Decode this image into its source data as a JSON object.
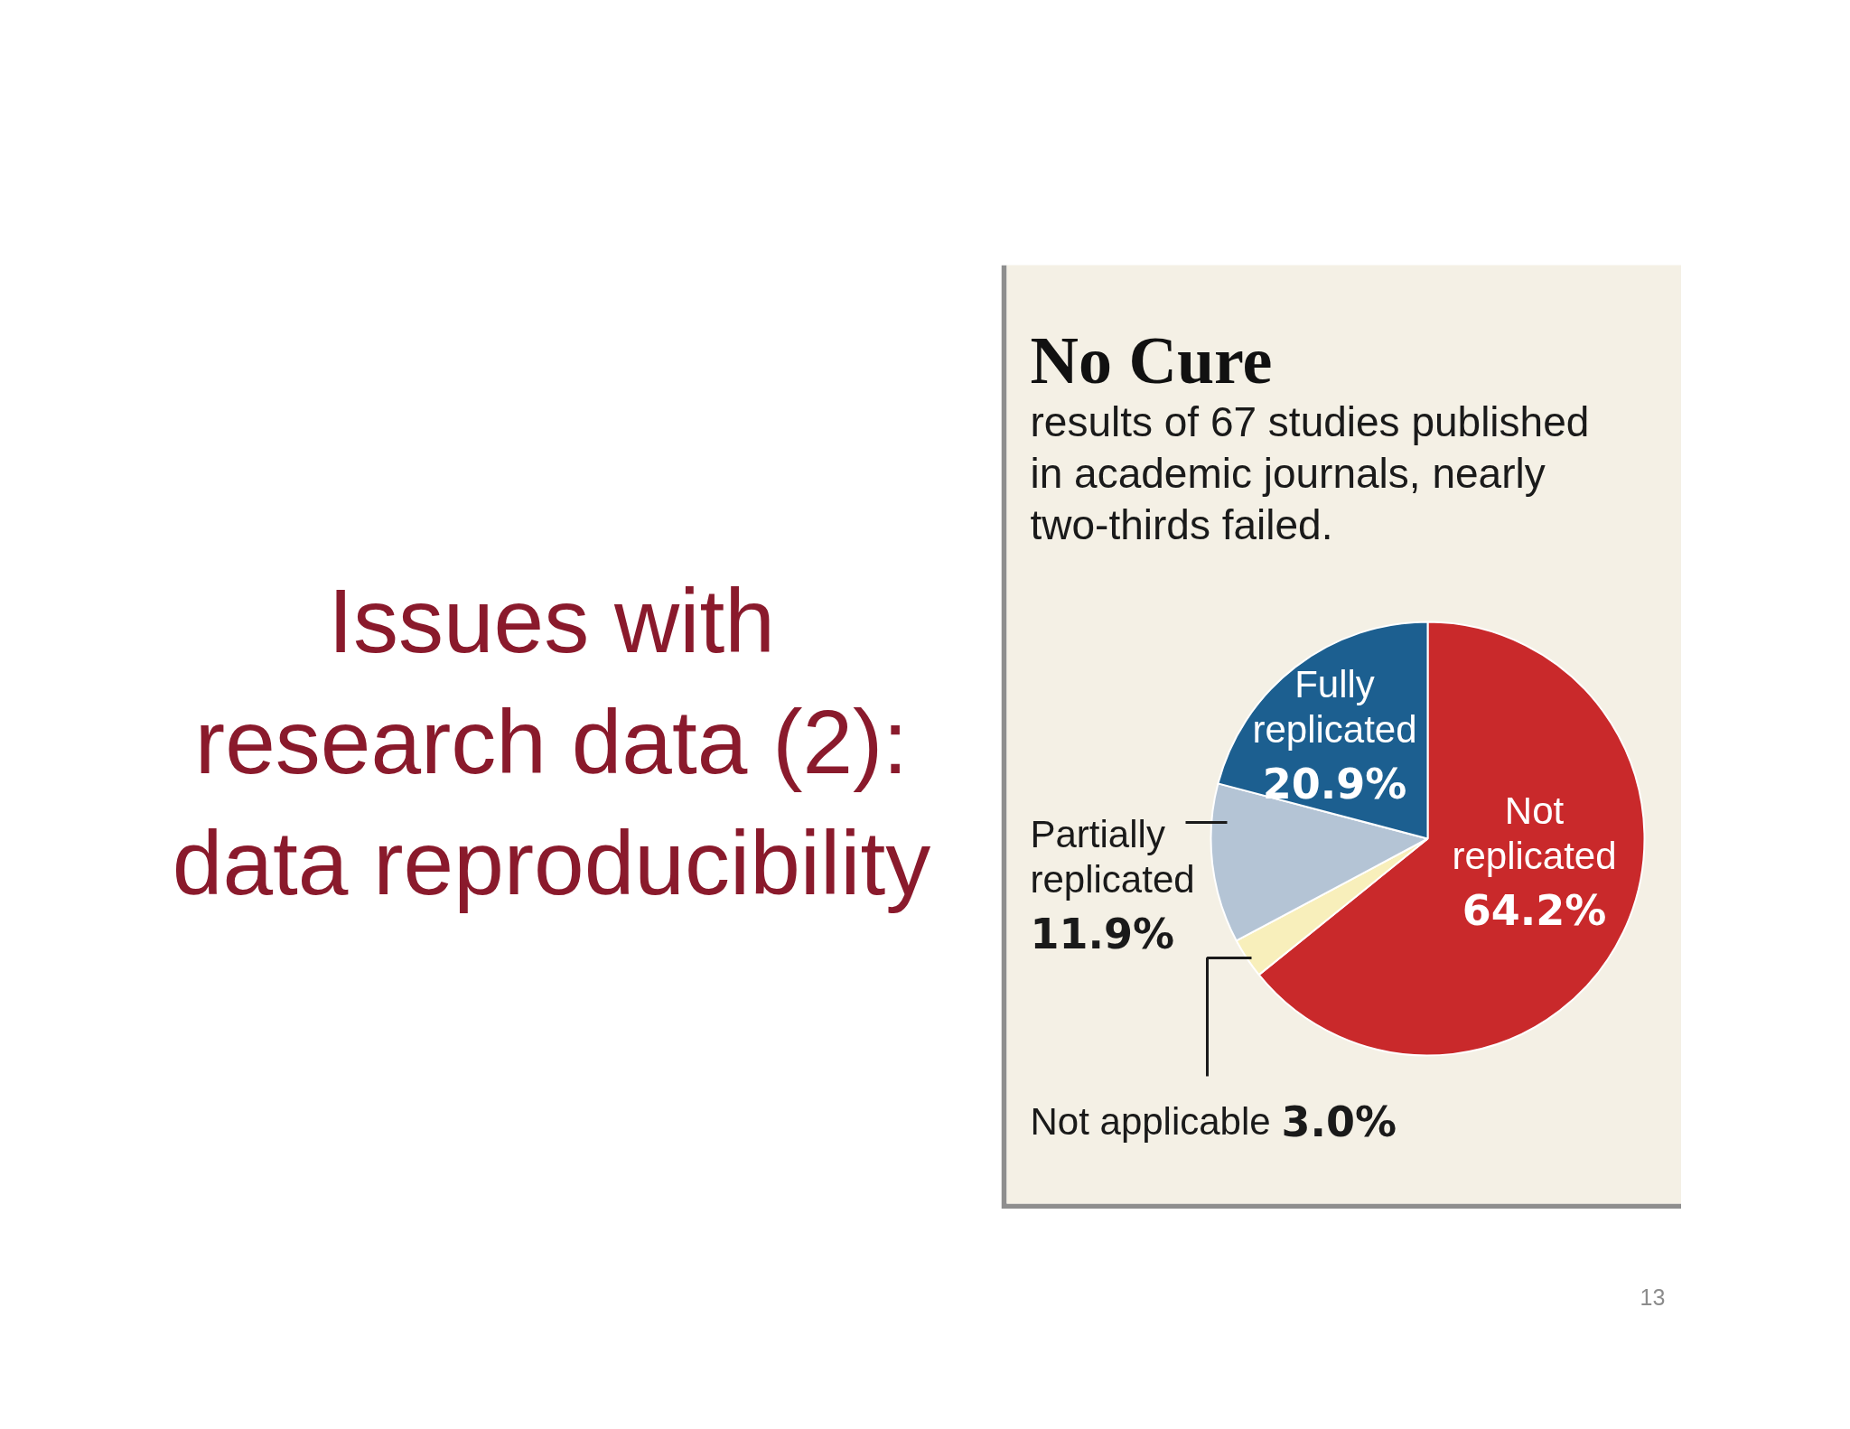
{
  "chart_data": {
    "type": "pie",
    "title": "No Cure",
    "subtitle": "results of 67 studies published in academic journals, nearly two-thirds failed.",
    "categories": [
      "Not replicated",
      "Not applicable",
      "Partially replicated",
      "Fully replicated"
    ],
    "values": [
      64.2,
      3.0,
      11.9,
      20.9
    ],
    "colors": [
      "#c9292b",
      "#f8efbb",
      "#b4c4d5",
      "#1c5f90"
    ],
    "value_labels": [
      "64.2%",
      "3.0%",
      "11.9%",
      "20.9%"
    ],
    "annotations": [
      "Issues with research data (2): data reproducibility",
      "13"
    ]
  }
}
